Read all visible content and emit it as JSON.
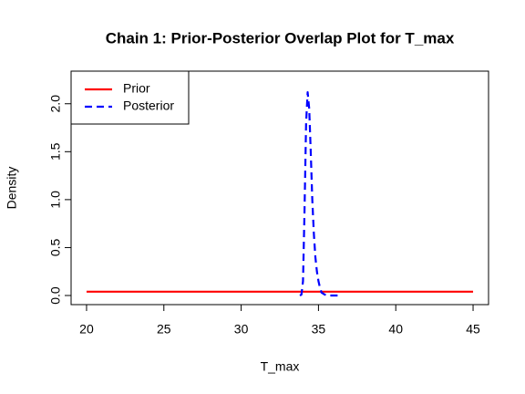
{
  "chart_data": {
    "type": "line",
    "title": "Chain 1: Prior-Posterior Overlap Plot for T_max",
    "x_label": "T_max",
    "y_label": "Density",
    "xlim": [
      19,
      46
    ],
    "ylim": [
      -0.095,
      2.34
    ],
    "xticks": [
      20,
      25,
      30,
      35,
      40,
      45
    ],
    "yticks": [
      {
        "value": 0,
        "label": "0.0"
      },
      0.5,
      {
        "value": 1,
        "label": "1.0"
      },
      1.5,
      {
        "value": 2,
        "label": "2.0"
      }
    ],
    "grid": false,
    "legend": "topleft",
    "series": [
      {
        "name": "Prior",
        "color": "#ff0000",
        "dashed": false,
        "x": [
          20,
          45
        ],
        "values": [
          0.04,
          0.04
        ]
      },
      {
        "name": "Posterior",
        "color": "#0000ff",
        "dashed": true,
        "x": [
          33.8,
          33.9,
          34.0,
          34.1,
          34.2,
          34.3,
          34.4,
          34.5,
          34.6,
          34.7,
          34.8,
          34.9,
          35.0,
          35.1,
          35.2,
          35.4,
          35.6,
          35.8,
          36.0,
          36.2,
          36.5
        ],
        "values": [
          0,
          0.01,
          0.15,
          0.9,
          1.8,
          2.12,
          1.95,
          1.5,
          1.0,
          0.65,
          0.4,
          0.25,
          0.15,
          0.08,
          0.03,
          0.01,
          0,
          0,
          0,
          0,
          0
        ]
      }
    ]
  }
}
